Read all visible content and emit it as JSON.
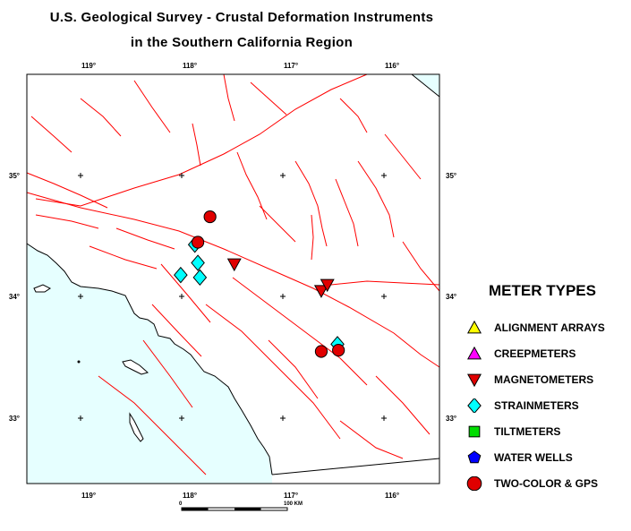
{
  "title_line1": "U.S. Geological Survey - Crustal Deformation Instruments",
  "title_line2": "in  the  Southern  California  Region",
  "lon_ticks": [
    {
      "label": "119°",
      "x": 90
    },
    {
      "label": "118°",
      "x": 203
    },
    {
      "label": "117°",
      "x": 316
    },
    {
      "label": "116°",
      "x": 429
    }
  ],
  "lat_ticks": [
    {
      "label": "35°",
      "y": 196
    },
    {
      "label": "34°",
      "y": 331
    },
    {
      "label": "33°",
      "y": 467
    }
  ],
  "legend": {
    "title": "METER TYPES",
    "items": [
      {
        "label": "ALIGNMENT ARRAYS",
        "shape": "triangle-up",
        "color": "#ffff00"
      },
      {
        "label": "CREEPMETERS",
        "shape": "triangle-up",
        "color": "#ff00ff"
      },
      {
        "label": "MAGNETOMETERS",
        "shape": "triangle-down",
        "color": "#e00000"
      },
      {
        "label": "STRAINMETERS",
        "shape": "diamond",
        "color": "#00ffff"
      },
      {
        "label": "TILTMETERS",
        "shape": "square",
        "color": "#00dd00"
      },
      {
        "label": "WATER WELLS",
        "shape": "pentagon",
        "color": "#0000ff"
      },
      {
        "label": "TWO-COLOR & GPS",
        "shape": "circle",
        "color": "#e00000"
      }
    ]
  },
  "scale": {
    "start_label": "0",
    "end_label": "100 KM"
  },
  "colors": {
    "ocean": "#e6ffff",
    "fault": "#ff0000",
    "coast": "#000000"
  },
  "instruments": {
    "two_color_gps": [
      {
        "lon": -117.72,
        "lat": 34.66
      },
      {
        "lon": -117.84,
        "lat": 34.45
      },
      {
        "lon": -116.62,
        "lat": 33.55
      },
      {
        "lon": -116.45,
        "lat": 33.56
      }
    ],
    "strainmeters": [
      {
        "lon": -117.87,
        "lat": 34.43
      },
      {
        "lon": -117.84,
        "lat": 34.28
      },
      {
        "lon": -118.01,
        "lat": 34.18
      },
      {
        "lon": -117.82,
        "lat": 34.16
      },
      {
        "lon": -116.46,
        "lat": 33.61
      }
    ],
    "magnetometers": [
      {
        "lon": -117.48,
        "lat": 34.27
      },
      {
        "lon": -116.62,
        "lat": 34.05
      },
      {
        "lon": -116.56,
        "lat": 34.1
      }
    ]
  }
}
